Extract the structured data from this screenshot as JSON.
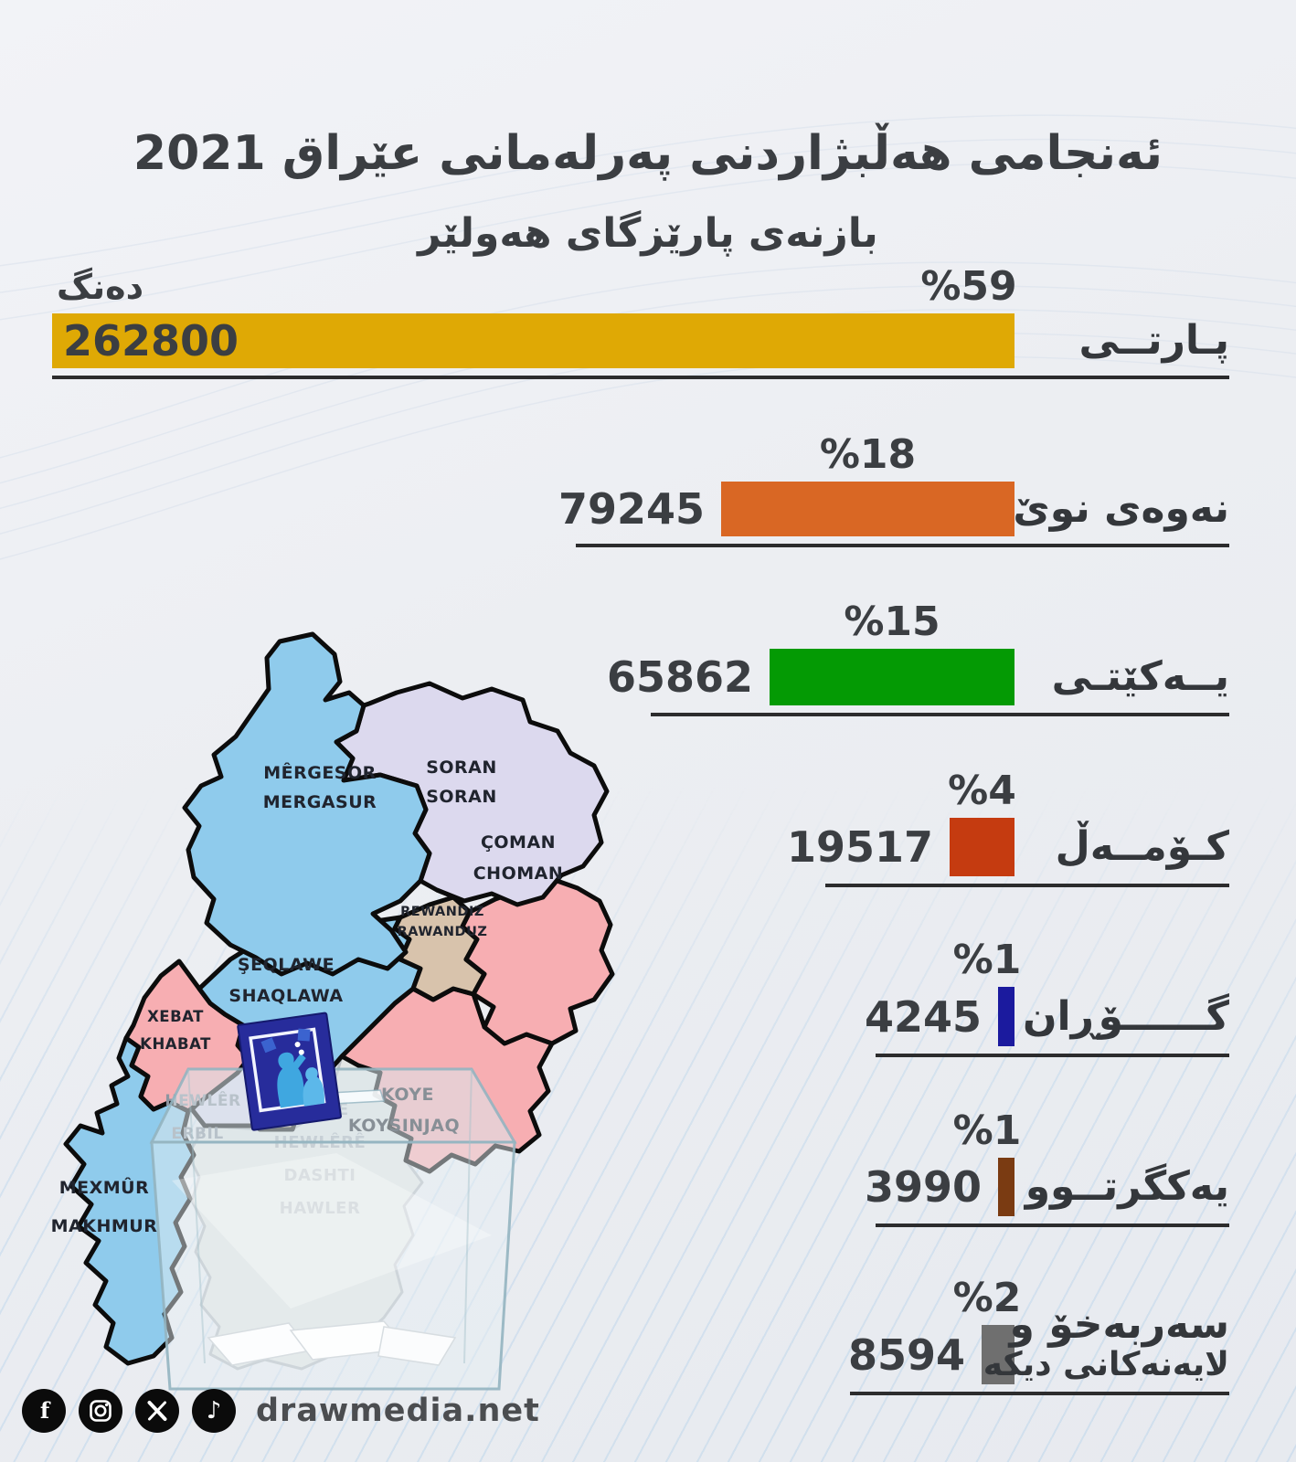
{
  "header": {
    "title": "ئەنجامی هەڵبژاردنی پەرلەمانی عێراق 2021",
    "subtitle": "بازنەی پارێزگای هەولێر"
  },
  "chart_data": {
    "type": "bar",
    "orientation": "horizontal",
    "direction": "rtl",
    "value_axis_label": "دەنگ",
    "xlim": [
      0,
      59
    ],
    "series": [
      {
        "party": "پـارتــی",
        "votes": 262800,
        "percent": 59,
        "percent_label": "%59",
        "color": "#dfa905"
      },
      {
        "party": "نەوەی نوێ",
        "votes": 79245,
        "percent": 18,
        "percent_label": "%18",
        "color": "#d96724"
      },
      {
        "party": "یــەکێتـی",
        "votes": 65862,
        "percent": 15,
        "percent_label": "%15",
        "color": "#049a04"
      },
      {
        "party": "کـۆمــەڵ",
        "votes": 19517,
        "percent": 4,
        "percent_label": "%4",
        "color": "#c53b10"
      },
      {
        "party": "گــــــۆڕان",
        "votes": 4245,
        "percent": 1,
        "percent_label": "%1",
        "color": "#1b1a9e"
      },
      {
        "party": "یەکگرتــوو",
        "votes": 3990,
        "percent": 1,
        "percent_label": "%1",
        "color": "#7a3b12"
      },
      {
        "party": "سەربەخۆ و",
        "party_line2": "لایەنەکانی دیکە",
        "votes": 8594,
        "percent": 2,
        "percent_label": "%2",
        "color": "#6f6f6f"
      }
    ]
  },
  "map": {
    "districts": [
      {
        "id": "mergasur",
        "line1": "MÊRGESOR",
        "line2": "MERGASUR",
        "color": "#8fcbec"
      },
      {
        "id": "soran",
        "line1": "SORAN",
        "line2": "SORAN",
        "color": "#dcd9ee"
      },
      {
        "id": "choman",
        "line1": "ÇOMAN",
        "line2": "CHOMAN",
        "color": "#f7aeb2"
      },
      {
        "id": "rewanduz",
        "line1": "REWANDIZ",
        "line2": "RAWANDUZ",
        "color": "#d8c3ac"
      },
      {
        "id": "shaqlawa",
        "line1": "ŞEQLAWE",
        "line2": "SHAQLAWA",
        "color": "#8fcbec"
      },
      {
        "id": "xebat",
        "line1": "XEBAT",
        "line2": "KHABAT",
        "color": "#f7aeb2"
      },
      {
        "id": "hewler",
        "line1": "HEWLÊR",
        "line2": "ERBIL",
        "color": "#dcd9ee"
      },
      {
        "id": "dashti-hawler",
        "line1": "DEŞTÊ",
        "line2": "HEWLÊRÊ",
        "line3": "DASHTI",
        "line4": "HAWLER",
        "color": "#e3e6e5"
      },
      {
        "id": "koye",
        "line1": "KOYE",
        "line2": "KOYSINJAQ",
        "color": "#f7aeb2"
      },
      {
        "id": "makhmur",
        "line1": "MEXMÛR",
        "line2": "MAKHMUR",
        "color": "#8fcbec"
      }
    ]
  },
  "footer": {
    "website": "drawmedia.net",
    "icons": [
      {
        "name": "facebook-icon"
      },
      {
        "name": "instagram-icon"
      },
      {
        "name": "x-icon"
      },
      {
        "name": "tiktok-icon"
      }
    ]
  }
}
